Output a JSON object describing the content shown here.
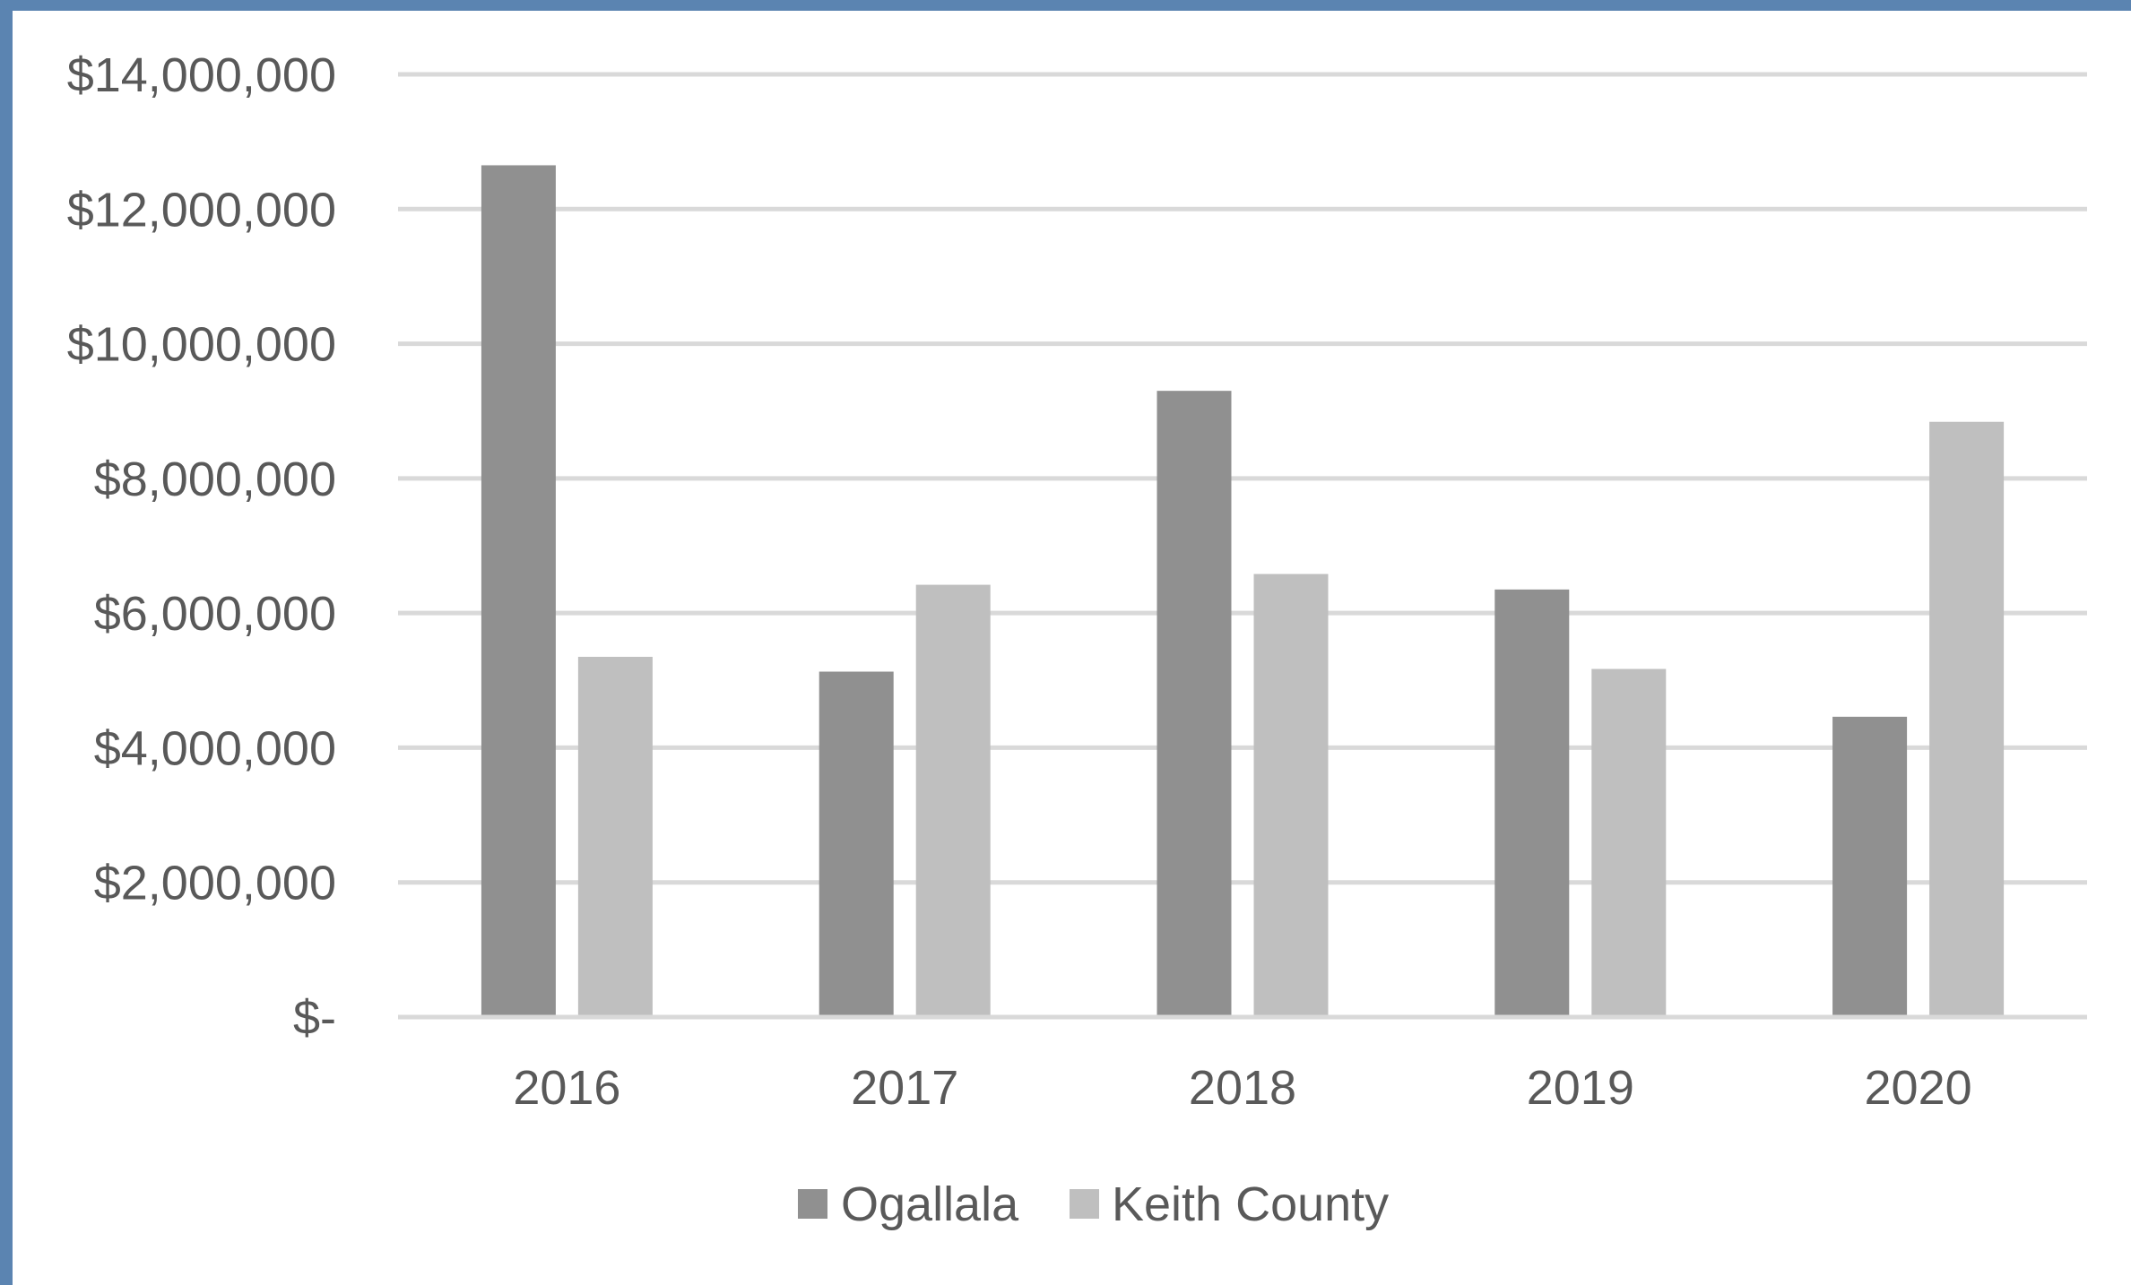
{
  "chart_data": {
    "type": "bar",
    "title": "",
    "xlabel": "",
    "ylabel": "",
    "categories": [
      "2016",
      "2017",
      "2018",
      "2019",
      "2020"
    ],
    "series": [
      {
        "name": "Ogallala",
        "color": "#909090",
        "values": [
          12650000,
          5130000,
          9300000,
          6350000,
          4460000
        ]
      },
      {
        "name": "Keith County",
        "color": "#bfbfbf",
        "values": [
          5350000,
          6420000,
          6580000,
          5170000,
          8840000
        ]
      }
    ],
    "ylim": [
      0,
      14000000
    ],
    "yticks": [
      0,
      2000000,
      4000000,
      6000000,
      8000000,
      10000000,
      12000000,
      14000000
    ],
    "ytick_labels": [
      "$-",
      "$2,000,000",
      "$4,000,000",
      "$6,000,000",
      "$8,000,000",
      "$10,000,000",
      "$12,000,000",
      "$14,000,000"
    ],
    "grid": true,
    "legend_position": "bottom",
    "gridline_color": "#d9d9d9"
  }
}
